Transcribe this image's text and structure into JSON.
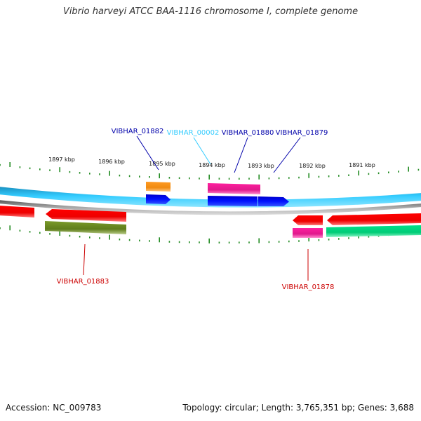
{
  "title": "Vibrio harveyi ATCC BAA-1116 chromosome I, complete genome",
  "footer": {
    "accession": "Accession: NC_009783",
    "stats": "Topology: circular; Length: 3,765,351 bp; Genes: 3,688"
  },
  "colors": {
    "plus_track": "#33ccff",
    "backbone": "#888888",
    "ticks": "#228b22",
    "plus_gene": "#0000ee",
    "minus_gene": "#ff0000",
    "cds_pink": "#e0198c",
    "cds_orange": "#f58c1a",
    "cds_olive": "#6b8e23",
    "cds_green": "#00dd88"
  },
  "scale": {
    "unit": "kbp",
    "labels": [
      "1897 kbp",
      "1896 kbp",
      "1895 kbp",
      "1894 kbp",
      "1893 kbp",
      "1892 kbp",
      "1891 kbp"
    ]
  },
  "genes": [
    {
      "name": "VIBHAR_01882",
      "color": "#0000aa"
    },
    {
      "name": "VIBHAR_00002",
      "color": "#33ccff"
    },
    {
      "name": "VIBHAR_01880",
      "color": "#0000aa"
    },
    {
      "name": "VIBHAR_01879",
      "color": "#0000aa"
    },
    {
      "name": "VIBHAR_01883",
      "color": "#cc0000"
    },
    {
      "name": "VIBHAR_01878",
      "color": "#cc0000"
    }
  ]
}
